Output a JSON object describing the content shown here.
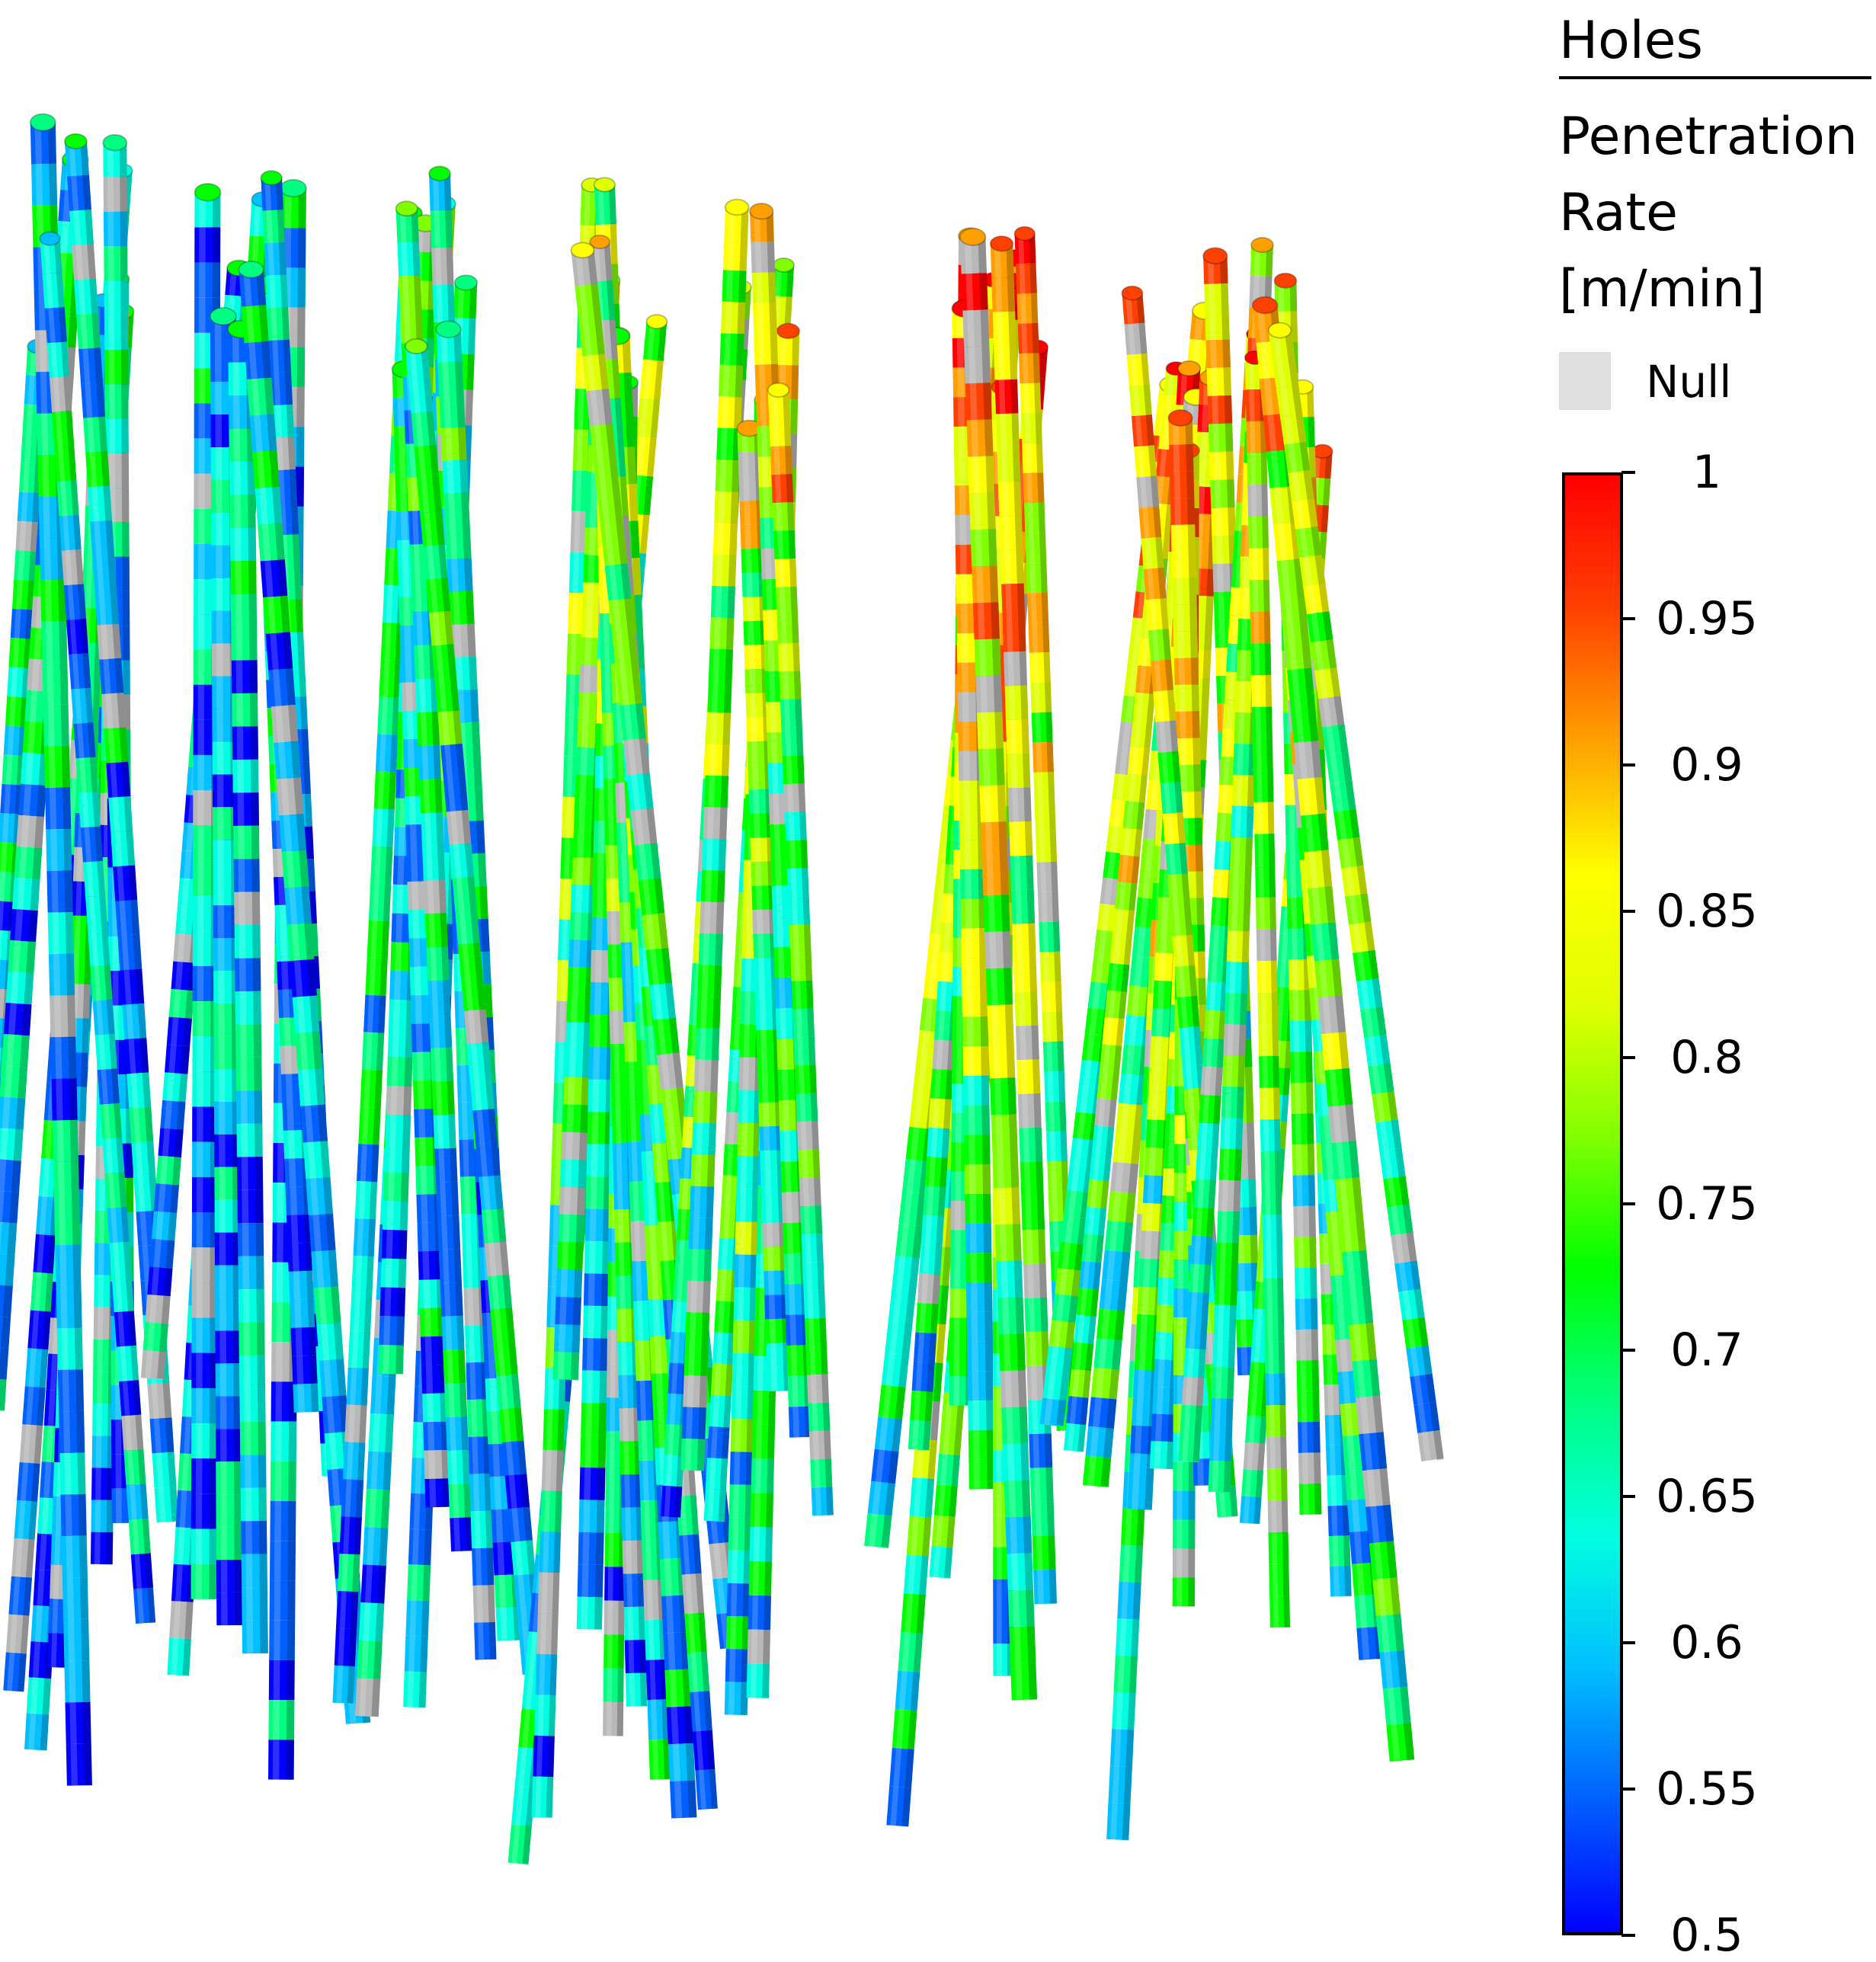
{
  "legend": {
    "group_title": "Holes",
    "variable_lines": [
      "Penetration",
      "Rate",
      "[m/min]"
    ],
    "null_label": "Null",
    "null_color": "#e0e0e0",
    "scale_min": 0.5,
    "scale_max": 1,
    "ticks": [
      "1",
      "0.95",
      "0.9",
      "0.85",
      "0.8",
      "0.75",
      "0.7",
      "0.65",
      "0.6",
      "0.55",
      "0.5"
    ],
    "colormap": [
      "#0000ff",
      "#0060ff",
      "#00c0ff",
      "#00ffe0",
      "#00ff80",
      "#00ff00",
      "#80ff00",
      "#e0ff00",
      "#ffff00",
      "#ffa000",
      "#ff4000",
      "#ff0000"
    ]
  }
}
